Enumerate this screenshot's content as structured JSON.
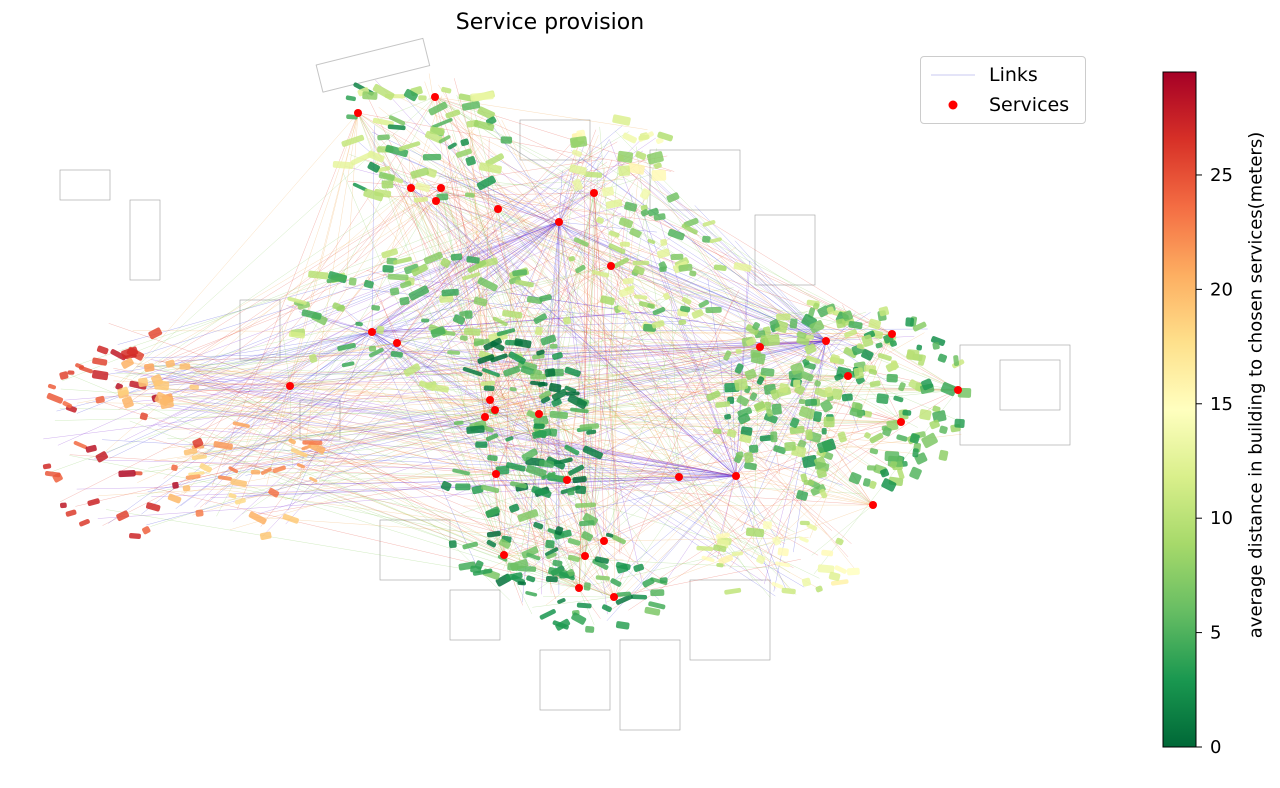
{
  "title": "Service provision",
  "legend": {
    "links_label": "Links",
    "services_label": "Services"
  },
  "colorbar": {
    "label": "average distance in building to chosen services(meters)",
    "ticks": [
      "0",
      "5",
      "10",
      "15",
      "20",
      "25"
    ],
    "tick_values": [
      0,
      5,
      10,
      15,
      20,
      25
    ],
    "min": 0,
    "max": 29.5,
    "colormap": "RdYlGn_r"
  },
  "colors": {
    "service_marker": "#ff0000",
    "link_hub_a": "#7a1fd1",
    "link_hub_b": "#2b2bd9",
    "link_red": "#e23b2a"
  }
}
